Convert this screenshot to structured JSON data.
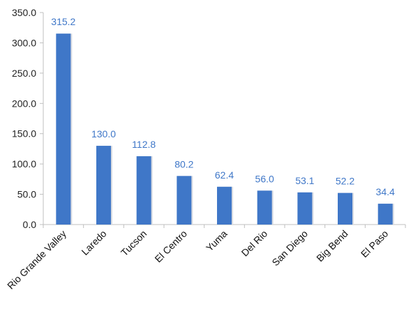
{
  "chart_data": {
    "type": "bar",
    "title": "",
    "xlabel": "",
    "ylabel": "",
    "categories": [
      "Rio Grande Valley",
      "Laredo",
      "Tucson",
      "El Centro",
      "Yuma",
      "Del Rio",
      "San Diego",
      "Big Bend",
      "El Paso"
    ],
    "values": [
      315.2,
      130.0,
      112.8,
      80.2,
      62.4,
      56.0,
      53.1,
      52.2,
      34.4
    ],
    "data_labels": [
      "315.2",
      "130.0",
      "112.8",
      "80.2",
      "62.4",
      "56.0",
      "53.1",
      "52.2",
      "34.4"
    ],
    "ylim": [
      0,
      350
    ],
    "y_ticks": [
      "0.0",
      "50.0",
      "100.0",
      "150.0",
      "200.0",
      "250.0",
      "300.0",
      "350.0"
    ],
    "y_tick_values": [
      0,
      50,
      100,
      150,
      200,
      250,
      300,
      350
    ],
    "grid": false,
    "legend": "none",
    "bar_color": "#3f77c8",
    "label_color": "#3f77c8",
    "axis_color": "#bfbfbf"
  }
}
